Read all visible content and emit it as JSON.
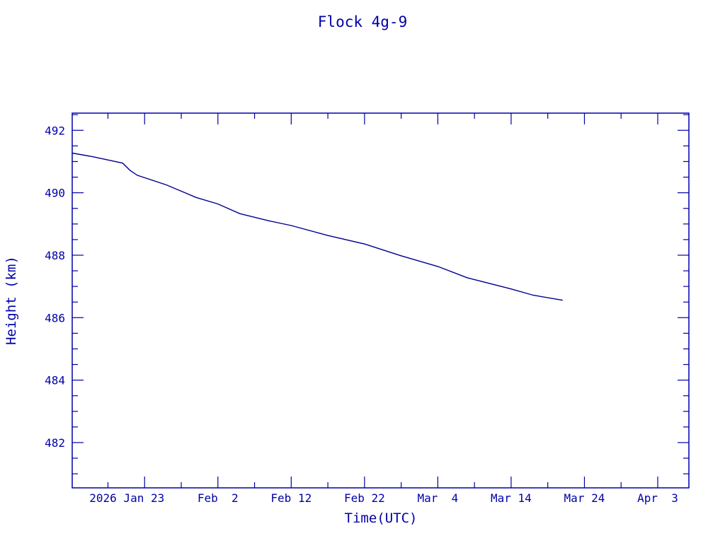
{
  "chart_data": {
    "type": "line",
    "title": "Flock 4g-9",
    "xlabel": "Time(UTC)",
    "ylabel": "Height (km)",
    "xlim": [
      "2026-01-13T03:00",
      "2026-04-07T06:00"
    ],
    "ylim": [
      480.55,
      492.55
    ],
    "grid": false,
    "colors": {
      "axis": "#0000a8",
      "line": "#000090"
    },
    "x_ticks": [
      {
        "date": "2026-01-23",
        "label": "2026 Jan 23"
      },
      {
        "date": "2026-02-02",
        "label": "Feb  2"
      },
      {
        "date": "2026-02-12",
        "label": "Feb 12"
      },
      {
        "date": "2026-02-22",
        "label": "Feb 22"
      },
      {
        "date": "2026-03-04",
        "label": "Mar  4"
      },
      {
        "date": "2026-03-14",
        "label": "Mar 14"
      },
      {
        "date": "2026-03-24",
        "label": "Mar 24"
      },
      {
        "date": "2026-04-03",
        "label": "Apr  3"
      }
    ],
    "y_ticks": [
      482,
      484,
      486,
      488,
      490,
      492
    ],
    "series": [
      {
        "x": [
          "2026-01-13T03:00",
          "2026-01-16",
          "2026-01-20",
          "2026-01-21",
          "2026-01-22",
          "2026-01-26",
          "2026-01-30",
          "2026-02-02",
          "2026-02-05",
          "2026-02-09",
          "2026-02-12",
          "2026-02-17",
          "2026-02-22",
          "2026-02-27",
          "2026-03-04",
          "2026-03-08",
          "2026-03-14",
          "2026-03-17",
          "2026-03-21"
        ],
        "y": [
          491.27,
          491.15,
          490.95,
          490.72,
          490.56,
          490.25,
          489.85,
          489.64,
          489.33,
          489.1,
          488.95,
          488.63,
          488.36,
          487.98,
          487.64,
          487.28,
          486.92,
          486.72,
          486.56
        ]
      }
    ]
  }
}
